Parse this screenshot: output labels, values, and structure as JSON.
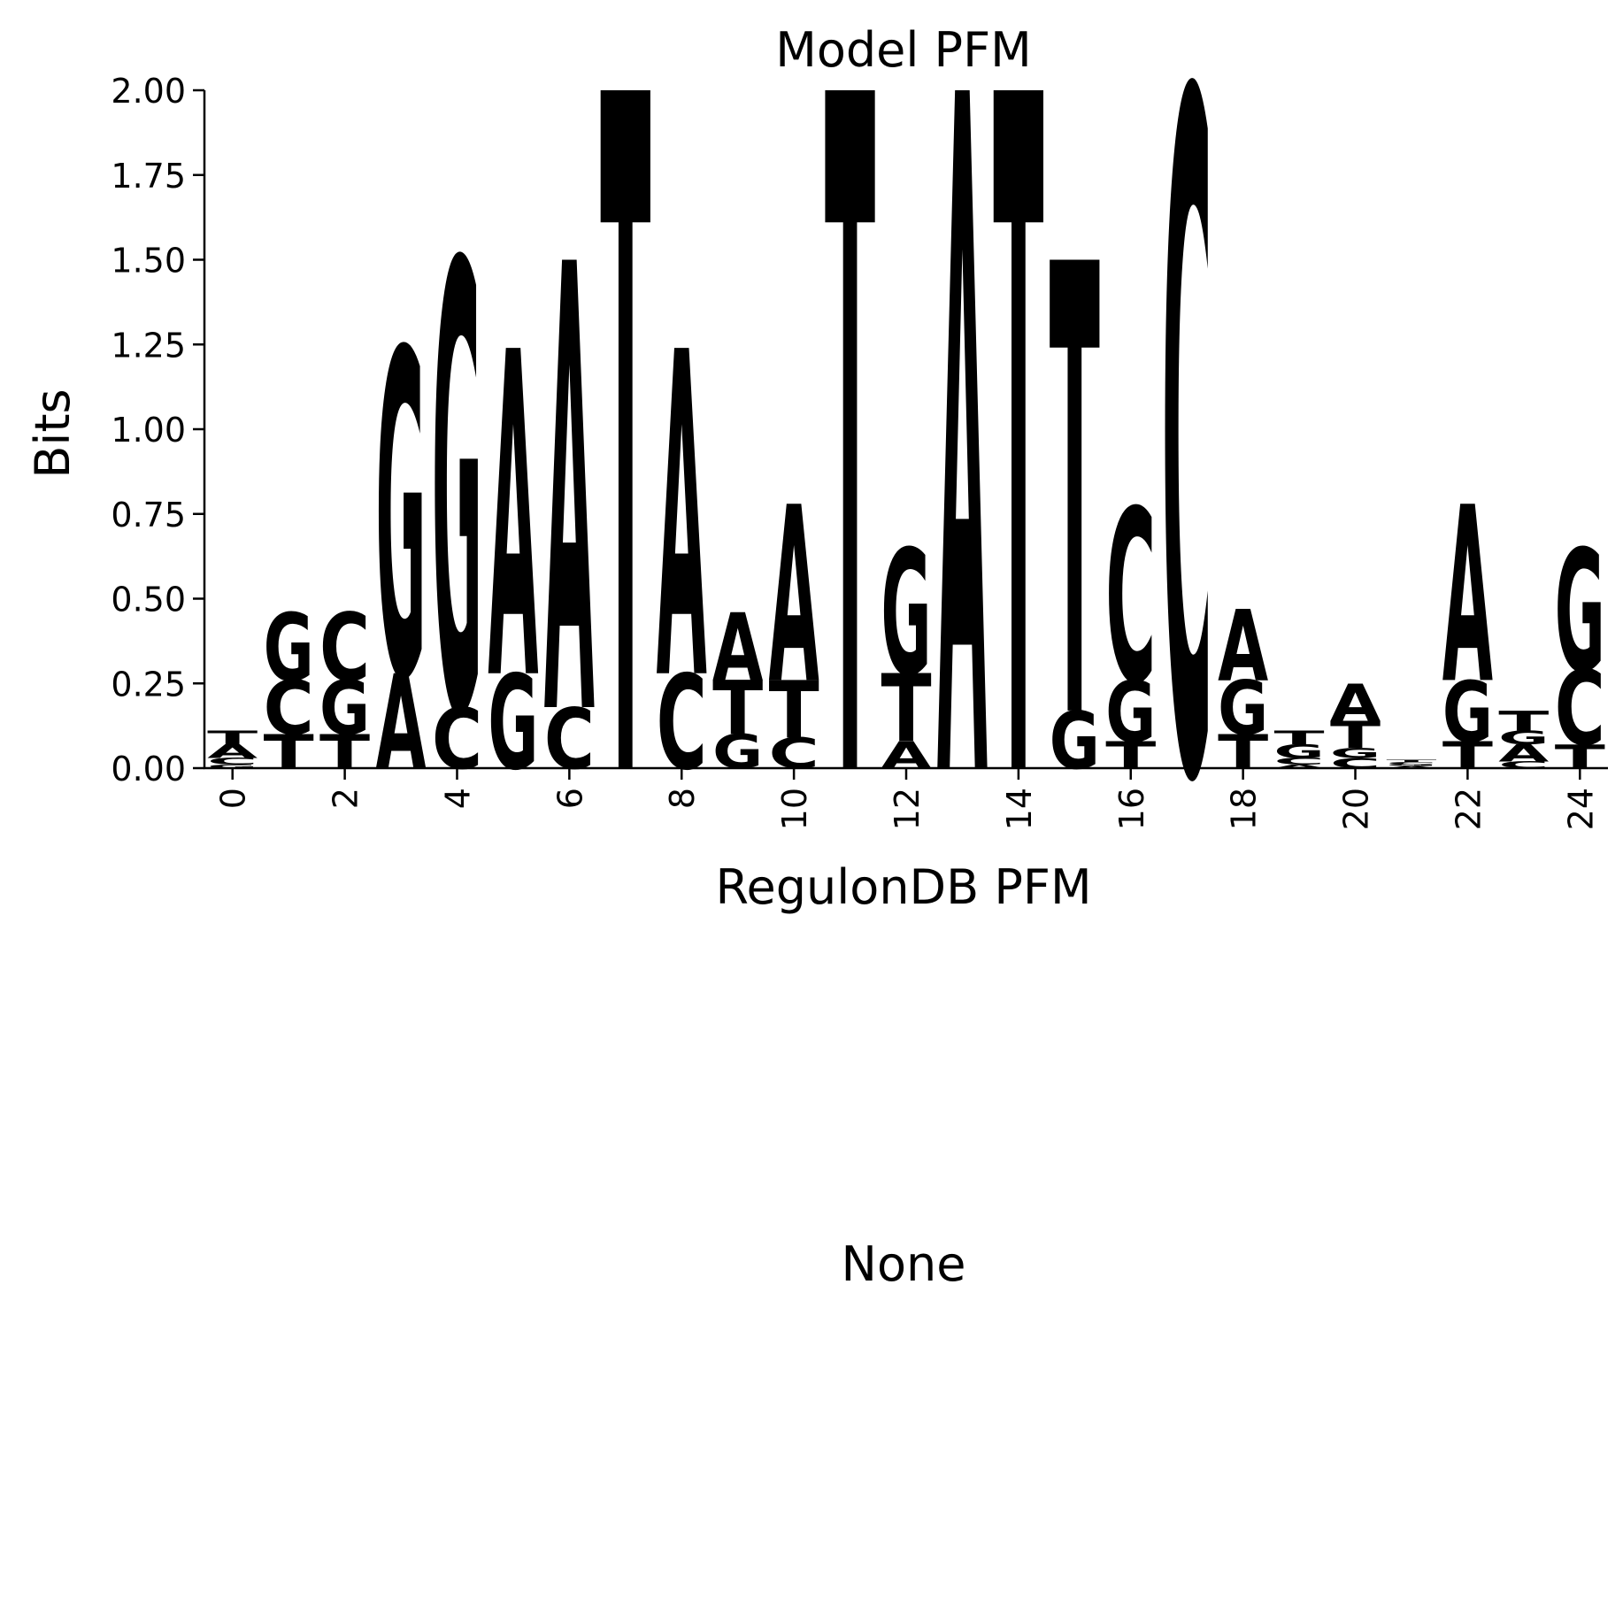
{
  "chart_data": {
    "type": "sequence-logo",
    "title": "Model PFM",
    "xlabel": "RegulonDB PFM",
    "ylabel": "Bits",
    "ylim": [
      0,
      2.0
    ],
    "xlim": [
      -0.5,
      24.5
    ],
    "yticks": [
      "0.00",
      "0.25",
      "0.50",
      "0.75",
      "1.00",
      "1.25",
      "1.50",
      "1.75",
      "2.00"
    ],
    "yticks_values": [
      0,
      0.25,
      0.5,
      0.75,
      1.0,
      1.25,
      1.5,
      1.75,
      2.0
    ],
    "xticks": [
      "0",
      "2",
      "4",
      "6",
      "8",
      "10",
      "12",
      "14",
      "16",
      "18",
      "20",
      "22",
      "24"
    ],
    "xticks_values": [
      0,
      2,
      4,
      6,
      8,
      10,
      12,
      14,
      16,
      18,
      20,
      22,
      24
    ],
    "colors": {
      "A": "#ff0000",
      "C": "#0000ff",
      "G": "#ffa500",
      "T": "#008000"
    },
    "positions": [
      [
        [
          "G",
          0.01
        ],
        [
          "C",
          0.02
        ],
        [
          "A",
          0.04
        ],
        [
          "T",
          0.04
        ]
      ],
      [
        [
          "T",
          0.1
        ],
        [
          "C",
          0.16
        ],
        [
          "G",
          0.2
        ]
      ],
      [
        [
          "T",
          0.1
        ],
        [
          "G",
          0.16
        ],
        [
          "C",
          0.2
        ]
      ],
      [
        [
          "A",
          0.28
        ],
        [
          "G",
          0.96
        ]
      ],
      [
        [
          "C",
          0.18
        ],
        [
          "G",
          1.32
        ]
      ],
      [
        [
          "G",
          0.28
        ],
        [
          "A",
          0.96
        ]
      ],
      [
        [
          "C",
          0.18
        ],
        [
          "A",
          1.32
        ]
      ],
      [
        [
          "T",
          2.0
        ]
      ],
      [
        [
          "C",
          0.28
        ],
        [
          "A",
          0.96
        ]
      ],
      [
        [
          "G",
          0.1
        ],
        [
          "T",
          0.16
        ],
        [
          "A",
          0.2
        ]
      ],
      [
        [
          "C",
          0.09
        ],
        [
          "T",
          0.17
        ],
        [
          "A",
          0.52
        ]
      ],
      [
        [
          "T",
          2.0
        ]
      ],
      [
        [
          "A",
          0.08
        ],
        [
          "T",
          0.2
        ],
        [
          "G",
          0.37
        ]
      ],
      [
        [
          "A",
          2.0
        ]
      ],
      [
        [
          "T",
          2.0
        ]
      ],
      [
        [
          "G",
          0.17
        ],
        [
          "T",
          1.33
        ]
      ],
      [
        [
          "T",
          0.08
        ],
        [
          "G",
          0.18
        ],
        [
          "C",
          0.51
        ]
      ],
      [
        [
          "C",
          2.0
        ]
      ],
      [
        [
          "T",
          0.1
        ],
        [
          "G",
          0.16
        ],
        [
          "A",
          0.21
        ]
      ],
      [
        [
          "A",
          0.01
        ],
        [
          "C",
          0.02
        ],
        [
          "G",
          0.04
        ],
        [
          "T",
          0.04
        ]
      ],
      [
        [
          "C",
          0.03
        ],
        [
          "G",
          0.03
        ],
        [
          "T",
          0.08
        ],
        [
          "A",
          0.11
        ]
      ],
      [
        [
          "A",
          0.006
        ],
        [
          "G",
          0.006
        ],
        [
          "C",
          0.006
        ],
        [
          "T",
          0.006
        ]
      ],
      [
        [
          "T",
          0.08
        ],
        [
          "G",
          0.18
        ],
        [
          "A",
          0.52
        ]
      ],
      [
        [
          "C",
          0.02
        ],
        [
          "A",
          0.05
        ],
        [
          "G",
          0.04
        ],
        [
          "T",
          0.06
        ]
      ],
      [
        [
          "T",
          0.07
        ],
        [
          "C",
          0.22
        ],
        [
          "G",
          0.36
        ]
      ]
    ]
  },
  "bottom_label": "None"
}
